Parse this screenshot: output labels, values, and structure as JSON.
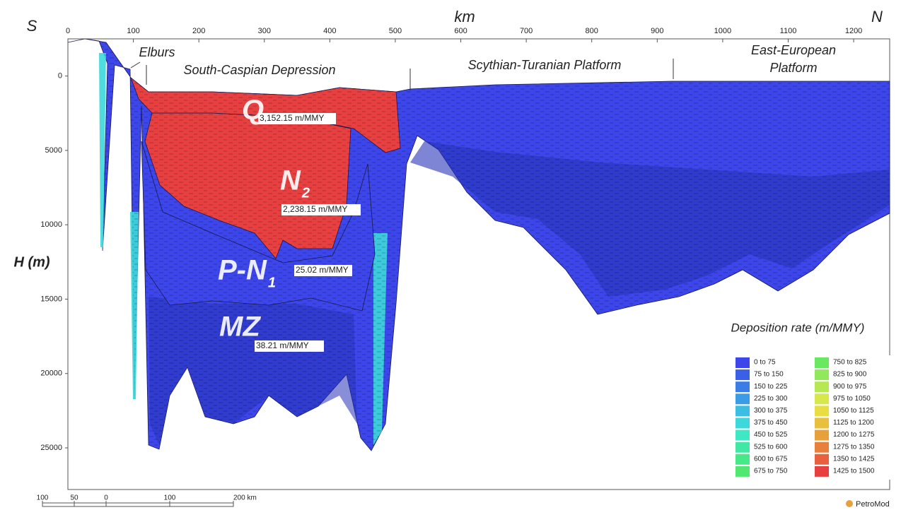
{
  "chart_data": {
    "type": "cross-section",
    "left_end": "S",
    "right_end": "N",
    "x_label": "km",
    "y_label": "H (m)",
    "xlim": [
      0,
      1255
    ],
    "xticks": [
      0,
      100,
      200,
      300,
      400,
      500,
      600,
      700,
      800,
      900,
      1000,
      1100,
      1200
    ],
    "ylim": [
      -2500,
      27800
    ],
    "yticks": [
      0,
      5000,
      10000,
      15000,
      20000,
      25000
    ],
    "regions": [
      [
        "Elburs"
      ],
      [
        "South-Caspian Depression"
      ],
      [
        "Scythian-Turanian Platform"
      ],
      [
        "East-European",
        "Platform"
      ]
    ],
    "layers": [
      {
        "name": "Q",
        "rate": 3152.15,
        "rate_label": "3,152.15 m/MMY"
      },
      {
        "name": "N",
        "subscript": "2",
        "rate": 2238.15,
        "rate_label": "2,238.15 m/MMY"
      },
      {
        "name": "P-N",
        "subscript": "1",
        "rate": 25.02,
        "rate_label": "25.02 m/MMY"
      },
      {
        "name": "MZ",
        "rate": 38.21,
        "rate_label": "38.21 m/MMY"
      }
    ],
    "legend": {
      "title": "Deposition rate (m/MMY)",
      "bins": [
        {
          "from": 0,
          "to": 75,
          "label": "0 to 75",
          "color": "#3c46ea"
        },
        {
          "from": 75,
          "to": 150,
          "label": "75 to 150",
          "color": "#3a60e8"
        },
        {
          "from": 150,
          "to": 225,
          "label": "150 to 225",
          "color": "#3a7de6"
        },
        {
          "from": 225,
          "to": 300,
          "label": "225 to 300",
          "color": "#3a9ce6"
        },
        {
          "from": 300,
          "to": 375,
          "label": "300 to 375",
          "color": "#3bbde4"
        },
        {
          "from": 375,
          "to": 450,
          "label": "375 to 450",
          "color": "#3cd8dc"
        },
        {
          "from": 450,
          "to": 525,
          "label": "450 to 525",
          "color": "#3ee8c4"
        },
        {
          "from": 525,
          "to": 600,
          "label": "525 to 600",
          "color": "#40e8a4"
        },
        {
          "from": 600,
          "to": 675,
          "label": "600 to 675",
          "color": "#46e888"
        },
        {
          "from": 675,
          "to": 750,
          "label": "675 to 750",
          "color": "#50e870"
        },
        {
          "from": 750,
          "to": 825,
          "label": "750 to 825",
          "color": "#6ae860"
        },
        {
          "from": 825,
          "to": 900,
          "label": "825 to 900",
          "color": "#90e85a"
        },
        {
          "from": 900,
          "to": 975,
          "label": "900 to 975",
          "color": "#b6e854"
        },
        {
          "from": 975,
          "to": 1050,
          "label": "975 to 1050",
          "color": "#d6e84c"
        },
        {
          "from": 1050,
          "to": 1125,
          "label": "1050 to 1125",
          "color": "#e8de44"
        },
        {
          "from": 1125,
          "to": 1200,
          "label": "1125 to 1200",
          "color": "#e8c03e"
        },
        {
          "from": 1200,
          "to": 1275,
          "label": "1200 to 1275",
          "color": "#e8a03c"
        },
        {
          "from": 1275,
          "to": 1350,
          "label": "1275 to 1350",
          "color": "#e8803c"
        },
        {
          "from": 1350,
          "to": 1425,
          "label": "1350 to 1425",
          "color": "#e8603e"
        },
        {
          "from": 1425,
          "to": 1500,
          "label": "1425 to 1500",
          "color": "#e84040"
        }
      ]
    },
    "scale_bar": [
      {
        "value": -100,
        "label": "100"
      },
      {
        "value": -50,
        "label": "50"
      },
      0,
      100,
      {
        "value": 200,
        "label": "200 km"
      }
    ],
    "logo": "PetroMod"
  }
}
